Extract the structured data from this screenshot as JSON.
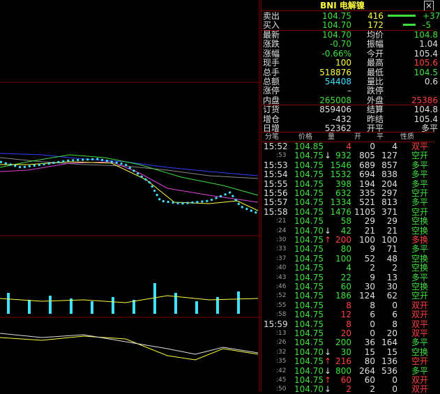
{
  "header": {
    "title": "BNI 电解镍",
    "close": "×"
  },
  "quote": {
    "rows": [
      {
        "label": "卖出",
        "price": "104.75",
        "vol": "416",
        "chg": "+37",
        "color": "#3de03d"
      },
      {
        "label": "买入",
        "price": "104.70",
        "vol": "172",
        "chg": "-5",
        "color": "#3de03d"
      }
    ]
  },
  "stats": {
    "rows": [
      [
        "最新",
        "104.70",
        "均价",
        "104.8"
      ],
      [
        "涨跌",
        "-0.70",
        "振幅",
        "1.04"
      ],
      [
        "涨幅",
        "-0.66%",
        "今开",
        "105.4"
      ],
      [
        "现手",
        "100",
        "最高",
        "105.6"
      ],
      [
        "总手",
        "518876",
        "最低",
        "104.5"
      ],
      [
        "总额",
        "54408",
        "量比",
        "0.6"
      ],
      [
        "涨停",
        "–",
        "跌停",
        ""
      ],
      [
        "内盘",
        "265008",
        "外盘",
        "25386"
      ],
      [
        "订货",
        "859406",
        "结算",
        "104.8"
      ],
      [
        "增仓",
        "-432",
        "昨结",
        "105.4"
      ],
      [
        "日增",
        "52362",
        "开平",
        "多平"
      ]
    ],
    "colors": [
      [
        "#3de03d",
        "#3de03d"
      ],
      [
        "#3de03d",
        "#e0e0e0"
      ],
      [
        "#3de03d",
        "#e0e0e0"
      ],
      [
        "#ffff40",
        "#ff4040"
      ],
      [
        "#ffff40",
        "#3de03d"
      ],
      [
        "#40e0ff",
        "#e0e0e0"
      ],
      [
        "#e0e0e0",
        "#e0e0e0"
      ],
      [
        "#3de03d",
        "#ff4040"
      ],
      [
        "#e0e0e0",
        "#e0e0e0"
      ],
      [
        "#e0e0e0",
        "#e0e0e0"
      ],
      [
        "#e0e0e0",
        "#e0e0e0"
      ]
    ]
  },
  "ticks": {
    "header": [
      "分笔",
      "价格",
      "量",
      "开",
      "平",
      "性质"
    ],
    "rows": [
      [
        "15:52",
        "104.85",
        "",
        "4",
        "0",
        "4",
        "双平",
        "#ff4040"
      ],
      [
        ":53",
        "104.75",
        "↓",
        "932",
        "805",
        "127",
        "空开",
        "#3de03d"
      ],
      [
        "15:53",
        "104.75",
        "",
        "1546",
        "689",
        "857",
        "多平",
        "#3de03d"
      ],
      [
        "15:54",
        "104.75",
        "",
        "1532",
        "694",
        "838",
        "多平",
        "#3de03d"
      ],
      [
        "15:55",
        "104.75",
        "",
        "398",
        "194",
        "204",
        "多平",
        "#3de03d"
      ],
      [
        "15:56",
        "104.75",
        "",
        "632",
        "335",
        "297",
        "空开",
        "#3de03d"
      ],
      [
        "15:57",
        "104.75",
        "",
        "1334",
        "521",
        "813",
        "多平",
        "#3de03d"
      ],
      [
        "15:58",
        "104.75",
        "",
        "1476",
        "1105",
        "371",
        "空开",
        "#3de03d"
      ],
      [
        ":21",
        "104.75",
        "",
        "58",
        "29",
        "29",
        "空换",
        "#3de03d"
      ],
      [
        ":24",
        "104.70",
        "↓",
        "42",
        "21",
        "21",
        "空换",
        "#3de03d"
      ],
      [
        ":30",
        "104.75",
        "↑",
        "200",
        "100",
        "100",
        "多换",
        "#ff4040"
      ],
      [
        ":33",
        "104.75",
        "",
        "80",
        "9",
        "71",
        "多平",
        "#3de03d"
      ],
      [
        ":37",
        "104.75",
        "",
        "100",
        "52",
        "48",
        "空换",
        "#3de03d"
      ],
      [
        ":40",
        "104.75",
        "",
        "4",
        "2",
        "2",
        "空换",
        "#3de03d"
      ],
      [
        ":43",
        "104.75",
        "",
        "22",
        "9",
        "13",
        "多平",
        "#3de03d"
      ],
      [
        ":46",
        "104.75",
        "",
        "60",
        "30",
        "30",
        "空换",
        "#3de03d"
      ],
      [
        ":52",
        "104.75",
        "",
        "186",
        "124",
        "62",
        "空开",
        "#3de03d"
      ],
      [
        ":55",
        "104.75",
        "",
        "8",
        "8",
        "0",
        "双开",
        "#ff4040"
      ],
      [
        ":58",
        "104.75",
        "",
        "12",
        "6",
        "6",
        "双开",
        "#ff4040"
      ],
      [
        "15:59",
        "104.75",
        "",
        "8",
        "0",
        "8",
        "双平",
        "#ff4040"
      ],
      [
        ":13",
        "104.75",
        "",
        "20",
        "0",
        "20",
        "双平",
        "#ff4040"
      ],
      [
        ":26",
        "104.75",
        "",
        "200",
        "36",
        "164",
        "多平",
        "#3de03d"
      ],
      [
        ":32",
        "104.70",
        "↓",
        "30",
        "15",
        "15",
        "空换",
        "#3de03d"
      ],
      [
        ":35",
        "104.75",
        "↑",
        "216",
        "80",
        "136",
        "空开",
        "#ff4040"
      ],
      [
        ":42",
        "104.70",
        "↓",
        "800",
        "264",
        "536",
        "多平",
        "#3de03d"
      ],
      [
        ":45",
        "104.75",
        "↑",
        "60",
        "60",
        "0",
        "双开",
        "#ff4040"
      ],
      [
        ":50",
        "104.70",
        "↓",
        "2",
        "2",
        "0",
        "双开",
        "#ff4040"
      ]
    ]
  }
}
